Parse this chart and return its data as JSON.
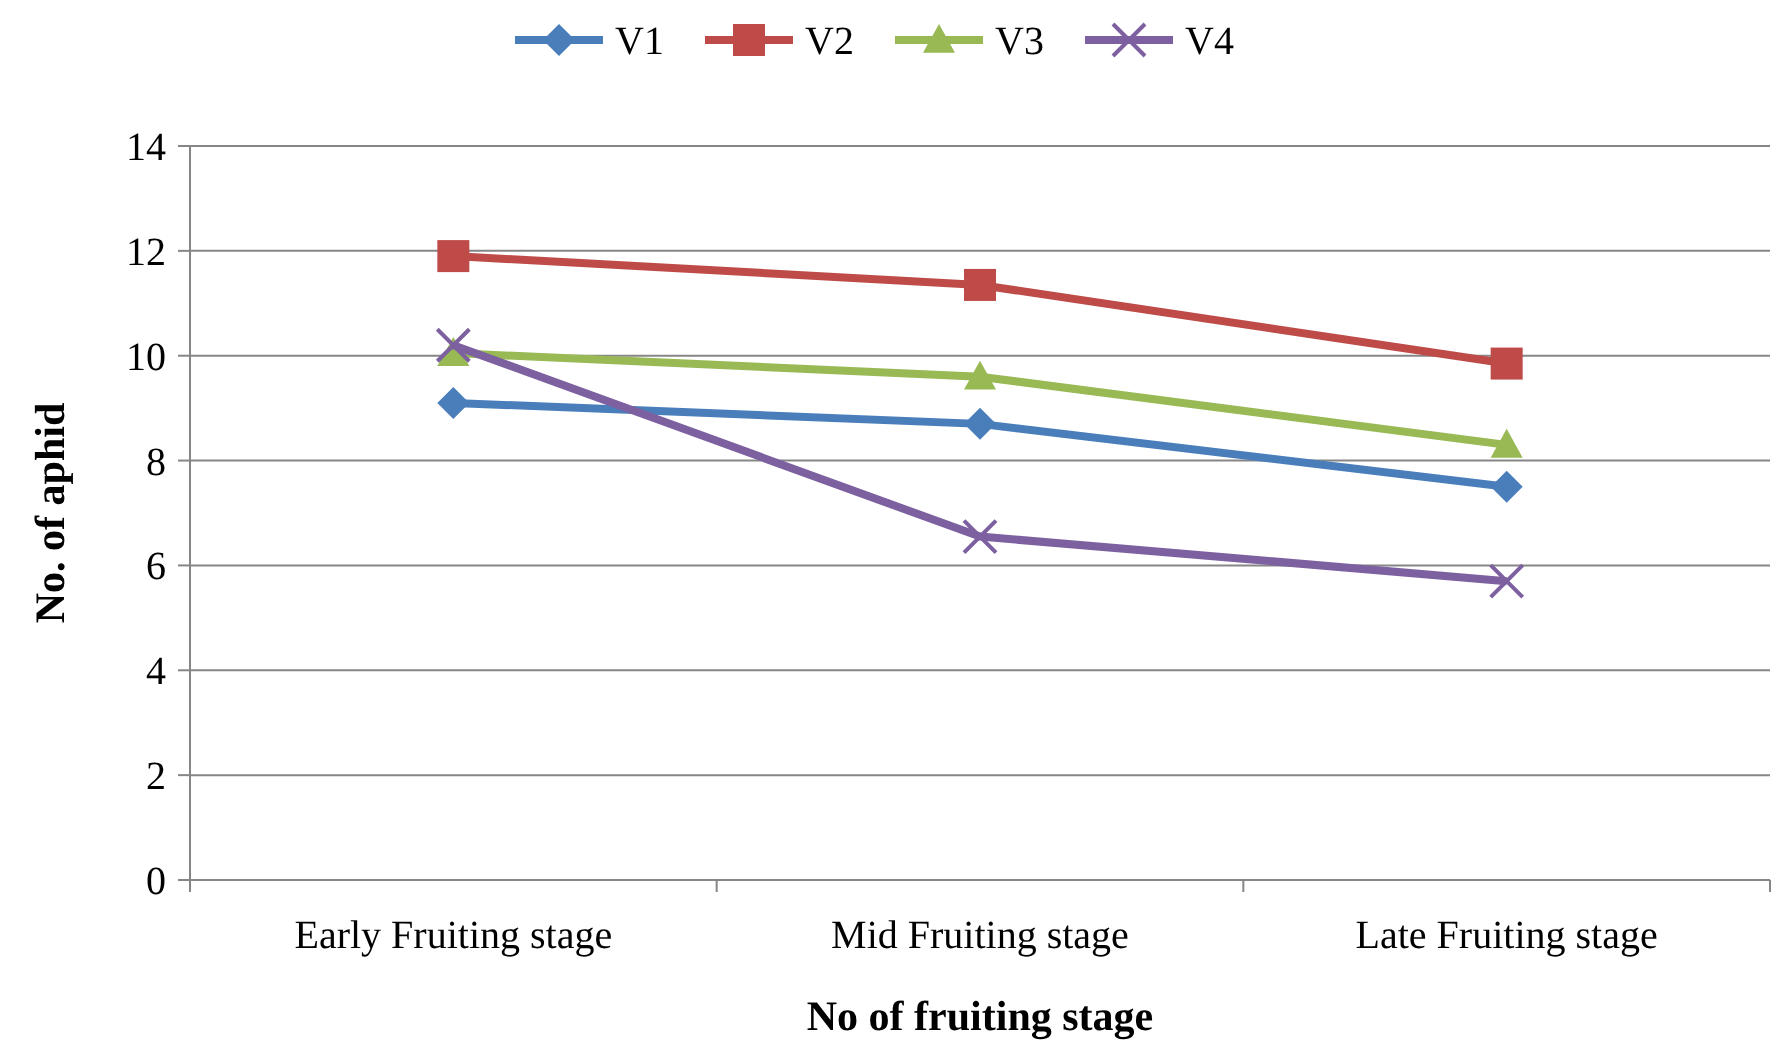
{
  "chart_data": {
    "type": "line",
    "xlabel": "No  of fruiting stage",
    "ylabel": "No. of aphid",
    "categories": [
      "Early Fruiting stage",
      "Mid Fruiting stage",
      "Late Fruiting stage"
    ],
    "series": [
      {
        "name": "V1",
        "color": "#4a7ebb",
        "marker": "diamond",
        "values": [
          9.1,
          8.7,
          7.5
        ]
      },
      {
        "name": "V2",
        "color": "#be4b48",
        "marker": "square",
        "values": [
          11.9,
          11.35,
          9.85
        ]
      },
      {
        "name": "V3",
        "color": "#98b954",
        "marker": "triangle",
        "values": [
          10.05,
          9.6,
          8.3
        ]
      },
      {
        "name": "V4",
        "color": "#7d60a0",
        "marker": "cross",
        "values": [
          10.2,
          6.55,
          5.7
        ]
      }
    ],
    "ylim": [
      0,
      14
    ],
    "yticks": [
      0,
      2,
      4,
      6,
      8,
      10,
      12,
      14
    ],
    "grid": "y",
    "legend": "top"
  }
}
